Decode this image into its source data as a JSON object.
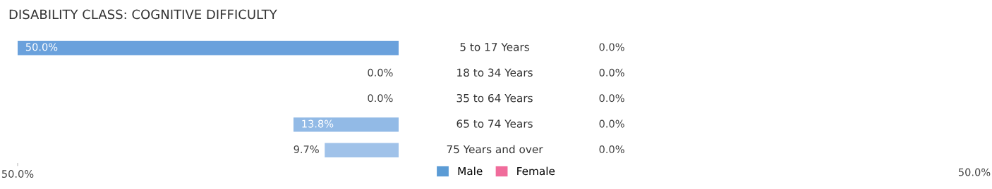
{
  "chart_data": [
    {
      "type": "bar",
      "orientation": "horizontal",
      "title": "DISABILITY CLASS: COGNITIVE DIFFICULTY",
      "categories": [
        "5 to 17 Years",
        "18 to 34 Years",
        "35 to 64 Years",
        "65 to 74 Years",
        "75 Years and over"
      ],
      "series": [
        {
          "name": "Male",
          "color": "#5b9bd5",
          "colors": [
            "#6aa1dc",
            "#b3cfee",
            "#b3cfee",
            "#92bae6",
            "#a0c2e9"
          ],
          "values": [
            50,
            0,
            0,
            13.8,
            9.7
          ],
          "value_labels": [
            "50.0%",
            "0.0%",
            "0.0%",
            "13.8%",
            "9.7%"
          ]
        }
      ],
      "xlim": [
        50,
        0
      ],
      "xticks": [
        {
          "value": 50,
          "label": "50.0%"
        }
      ],
      "tick_labels": "x",
      "legend": "bottom"
    },
    {
      "type": "other",
      "categories": [
        null,
        null,
        null,
        null,
        null
      ],
      "series": [
        {
          "name": "Female",
          "color": "#f06c9b",
          "colors": [
            "#f7a8c0",
            "#f7a8c0",
            "#f7a8c0",
            "#f7a8c0",
            "#f7a8c0"
          ],
          "values": [
            0,
            0,
            0,
            0,
            0
          ],
          "value_labels": [
            "0.0%",
            "0.0%",
            "0.0%",
            "0.0%",
            "0.0%"
          ]
        }
      ],
      "annotations": [
        "50.0%"
      ]
    }
  ]
}
